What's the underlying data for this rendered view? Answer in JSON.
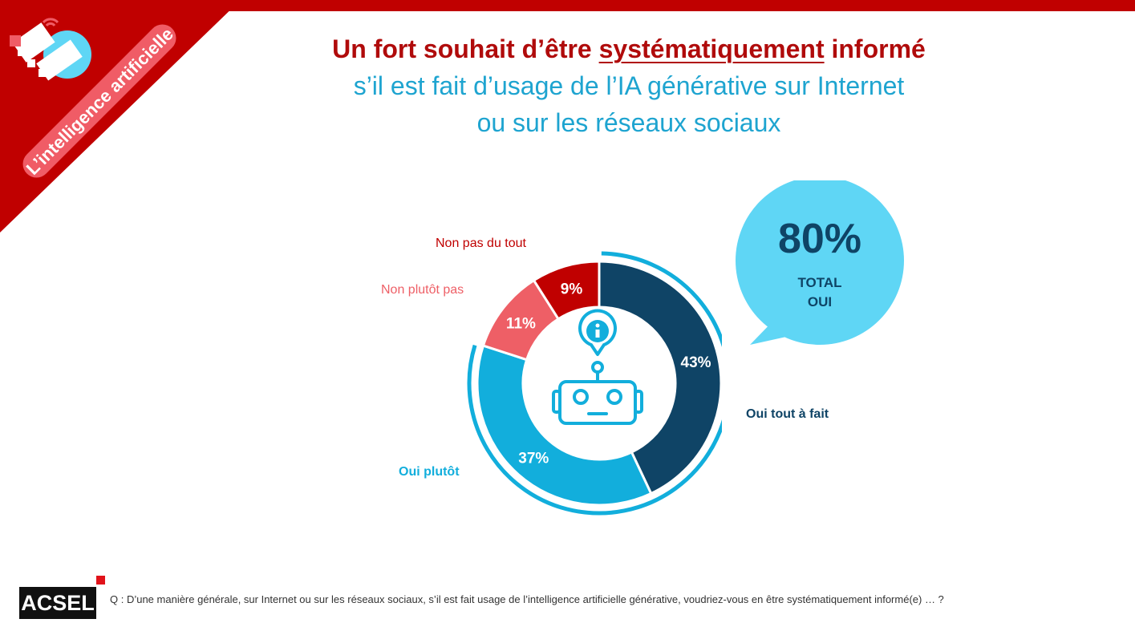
{
  "badge": {
    "text": "L’intelligence artificielle"
  },
  "title": {
    "line1_before": "Un fort souhait d’être ",
    "line1_emphasis": "systématiquement",
    "line1_after": " informé",
    "line2": "s’il est fait d’usage de l’IA générative sur Internet",
    "line3": "ou sur les réseaux sociaux"
  },
  "chart_data": {
    "type": "pie",
    "categories": [
      "Oui tout à fait",
      "Oui plutôt",
      "Non plutôt pas",
      "Non pas du tout"
    ],
    "values": [
      43,
      37,
      11,
      9
    ],
    "value_labels": [
      "43%",
      "37%",
      "11%",
      "9%"
    ],
    "colors": [
      "#0f4466",
      "#12aedc",
      "#ee5f66",
      "#c00000"
    ],
    "hole": true
  },
  "total": {
    "value": "80%",
    "line1": "TOTAL",
    "line2": "OUI",
    "color": "#5fd6f5"
  },
  "footer": {
    "logo": "ACSEL",
    "question": "Q : D’une manière générale, sur Internet ou sur les réseaux sociaux, s’il est fait usage de l’intelligence artificielle générative, voudriez-vous en être systématiquement informé(e) … ?"
  },
  "icons": {
    "robot": "robot-icon",
    "info": "info-icon",
    "handshake": "handshake-icon"
  }
}
